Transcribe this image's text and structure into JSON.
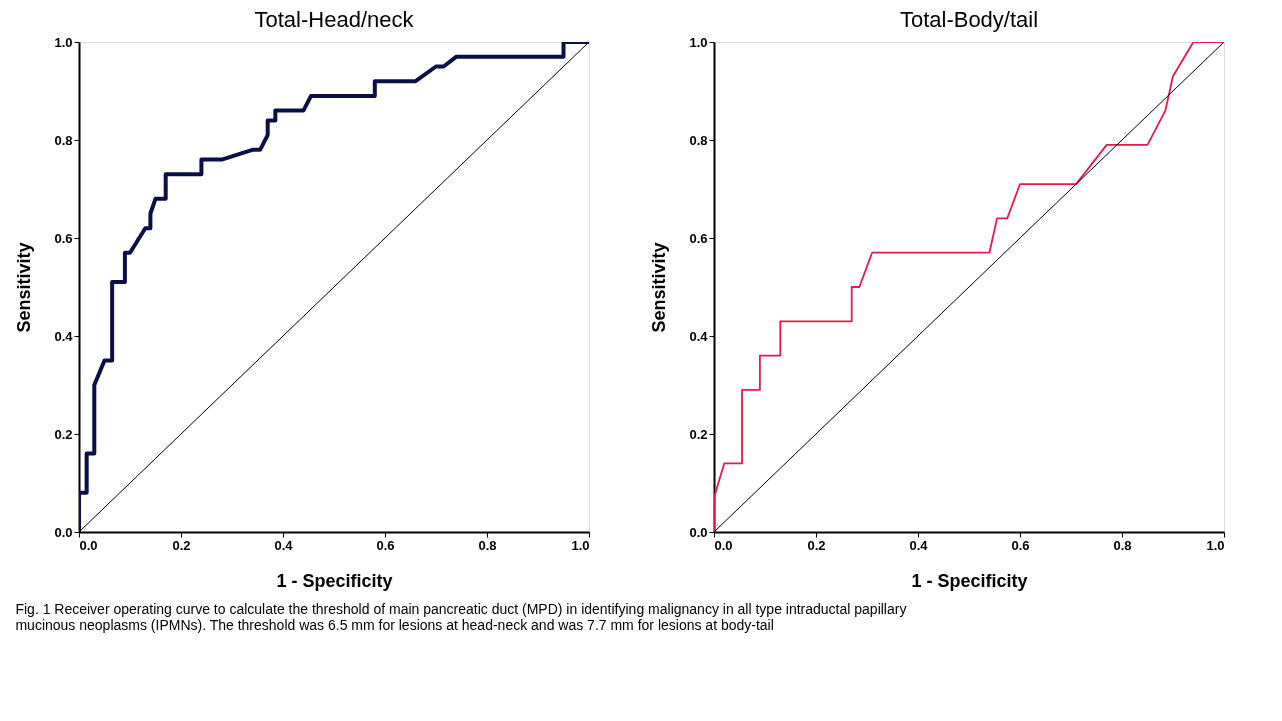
{
  "chart_data": [
    {
      "type": "line",
      "title": "Total-Head/neck",
      "xlabel": "1 - Specificity",
      "ylabel": "Sensitivity",
      "xlim": [
        0,
        1
      ],
      "ylim": [
        0,
        1
      ],
      "grid": false,
      "xticks": [
        {
          "value": 0,
          "label": "0.0"
        },
        {
          "value": 0.2,
          "label": "0.2"
        },
        {
          "value": 0.4,
          "label": "0.4"
        },
        {
          "value": 0.6,
          "label": "0.6"
        },
        {
          "value": 0.8,
          "label": "0.8"
        },
        {
          "value": 1,
          "label": "1.0"
        }
      ],
      "yticks": [
        {
          "value": 0,
          "label": "0.0"
        },
        {
          "value": 0.2,
          "label": "0.2"
        },
        {
          "value": 0.4,
          "label": "0.4"
        },
        {
          "value": 0.6,
          "label": "0.6"
        },
        {
          "value": 0.8,
          "label": "0.8"
        },
        {
          "value": 1,
          "label": "1.0"
        }
      ],
      "series": [
        {
          "color": "#0a1045",
          "x": [
            0,
            0,
            0.015,
            0.015,
            0.03,
            0.03,
            0.05,
            0.065,
            0.065,
            0.09,
            0.09,
            0.1,
            0.13,
            0.14,
            0.14,
            0.15,
            0.17,
            0.17,
            0.24,
            0.24,
            0.28,
            0.34,
            0.355,
            0.37,
            0.37,
            0.385,
            0.385,
            0.44,
            0.455,
            0.58,
            0.58,
            0.66,
            0.7,
            0.715,
            0.74,
            0.95,
            0.95,
            1
          ],
          "values": [
            0,
            0.08,
            0.08,
            0.16,
            0.16,
            0.3,
            0.35,
            0.35,
            0.51,
            0.51,
            0.57,
            0.57,
            0.62,
            0.62,
            0.65,
            0.68,
            0.68,
            0.73,
            0.73,
            0.76,
            0.76,
            0.78,
            0.78,
            0.81,
            0.84,
            0.84,
            0.86,
            0.86,
            0.89,
            0.89,
            0.92,
            0.92,
            0.95,
            0.95,
            0.97,
            0.97,
            1,
            1
          ]
        },
        {
          "color": "#000000",
          "x": [
            0,
            1
          ],
          "values": [
            0,
            1
          ]
        }
      ],
      "annotations": [
        "Fig. 1  Receiver operating curve to calculate the threshold of main pancreatic duct (MPD) in identifying malignancy in all type intraductal papillary mucinous neoplasms (IPMNs). The threshold was 6.5 mm for lesions at head-neck and was 7.7 mm for lesions at body-tail"
      ]
    },
    {
      "type": "line",
      "title": "Total-Body/tail",
      "xlabel": "1 - Specificity",
      "ylabel": "Sensitivity",
      "xlim": [
        0,
        1
      ],
      "ylim": [
        0,
        1
      ],
      "grid": false,
      "xticks": [
        {
          "value": 0,
          "label": "0.0"
        },
        {
          "value": 0.2,
          "label": "0.2"
        },
        {
          "value": 0.4,
          "label": "0.4"
        },
        {
          "value": 0.6,
          "label": "0.6"
        },
        {
          "value": 0.8,
          "label": "0.8"
        },
        {
          "value": 1,
          "label": "1.0"
        }
      ],
      "yticks": [
        {
          "value": 0,
          "label": "0.0"
        },
        {
          "value": 0.2,
          "label": "0.2"
        },
        {
          "value": 0.4,
          "label": "0.4"
        },
        {
          "value": 0.6,
          "label": "0.6"
        },
        {
          "value": 0.8,
          "label": "0.8"
        },
        {
          "value": 1,
          "label": "1.0"
        }
      ],
      "series": [
        {
          "color": "#e8194a",
          "x": [
            0,
            0,
            0.02,
            0.055,
            0.055,
            0.09,
            0.09,
            0.13,
            0.13,
            0.27,
            0.27,
            0.285,
            0.31,
            0.54,
            0.555,
            0.575,
            0.6,
            0.71,
            0.77,
            0.85,
            0.885,
            0.9,
            0.94,
            1
          ],
          "values": [
            0,
            0.07,
            0.14,
            0.14,
            0.29,
            0.29,
            0.36,
            0.36,
            0.43,
            0.43,
            0.5,
            0.5,
            0.57,
            0.57,
            0.64,
            0.64,
            0.71,
            0.71,
            0.79,
            0.79,
            0.86,
            0.93,
            1,
            1
          ]
        },
        {
          "color": "#000000",
          "x": [
            0,
            1
          ],
          "values": [
            0,
            1
          ]
        }
      ]
    }
  ]
}
